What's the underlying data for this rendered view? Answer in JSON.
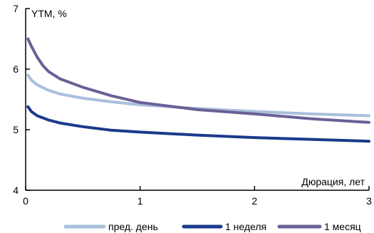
{
  "chart_data": {
    "type": "line",
    "ylabel": "YTM, %",
    "xlabel": "Дюрация, лет",
    "xlim": [
      0,
      3
    ],
    "ylim": [
      4,
      7
    ],
    "x_ticks": [
      "0",
      "1",
      "2",
      "3"
    ],
    "y_ticks": [
      "4",
      "5",
      "6",
      "7"
    ],
    "grid": false,
    "legend_position": "bottom",
    "series": [
      {
        "name": "пред. день",
        "color": "#a9bfdc",
        "x": [
          0.02,
          0.05,
          0.1,
          0.2,
          0.3,
          0.5,
          0.75,
          1.0,
          1.5,
          2.0,
          2.5,
          3.0
        ],
        "values": [
          5.9,
          5.82,
          5.74,
          5.65,
          5.59,
          5.52,
          5.46,
          5.41,
          5.35,
          5.3,
          5.26,
          5.23
        ]
      },
      {
        "name": "1 неделя",
        "color": "#1b3a8c",
        "x": [
          0.02,
          0.05,
          0.1,
          0.2,
          0.3,
          0.5,
          0.75,
          1.0,
          1.5,
          2.0,
          2.5,
          3.0
        ],
        "values": [
          5.38,
          5.3,
          5.23,
          5.16,
          5.11,
          5.05,
          4.99,
          4.96,
          4.91,
          4.87,
          4.84,
          4.81
        ]
      },
      {
        "name": "1 месяц",
        "color": "#6c5f96",
        "x": [
          0.02,
          0.05,
          0.1,
          0.15,
          0.2,
          0.3,
          0.5,
          0.75,
          1.0,
          1.5,
          2.0,
          2.5,
          3.0
        ],
        "values": [
          6.5,
          6.38,
          6.2,
          6.06,
          5.96,
          5.84,
          5.7,
          5.56,
          5.45,
          5.33,
          5.26,
          5.18,
          5.12
        ]
      }
    ]
  }
}
